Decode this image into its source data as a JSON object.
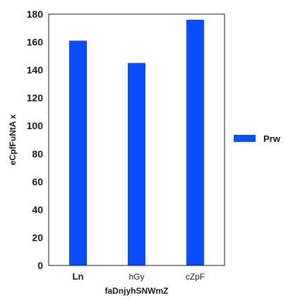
{
  "chart_data": {
    "type": "bar",
    "categories": [
      "Ln",
      "hGy",
      "cZpF"
    ],
    "bold_categories": [
      "Ln"
    ],
    "series": [
      {
        "name": "Prw",
        "values": [
          161,
          145,
          176
        ],
        "color": "#0a4cff"
      }
    ],
    "xlabel": "faDnjyhSNWmZ",
    "ylabel": "eCpfFuNtA x",
    "ylim": [
      0,
      180
    ],
    "yticks": [
      0,
      20,
      40,
      60,
      80,
      100,
      120,
      140,
      160,
      180
    ],
    "grid": false,
    "legend_position": "right"
  }
}
